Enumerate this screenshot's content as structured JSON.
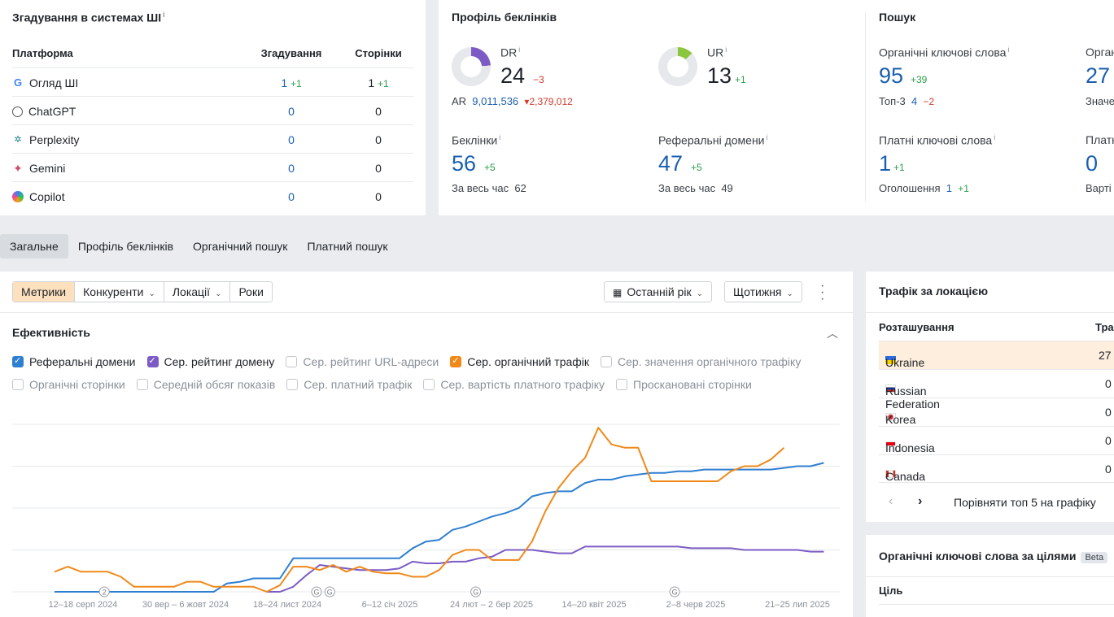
{
  "ai": {
    "title": "Згадування в системах ШІ",
    "info": "i",
    "headers": {
      "platform": "Платформа",
      "mentions": "Згадування",
      "pages": "Сторінки"
    },
    "rows": [
      {
        "name": "Огляд ШІ",
        "icon": "google-icon",
        "mentions": "1",
        "mentions_delta": "+1",
        "pages": "1",
        "pages_delta": "+1"
      },
      {
        "name": "ChatGPT",
        "icon": "chatgpt-icon",
        "mentions": "0",
        "mentions_delta": "",
        "pages": "0",
        "pages_delta": ""
      },
      {
        "name": "Perplexity",
        "icon": "perplexity-icon",
        "mentions": "0",
        "mentions_delta": "",
        "pages": "0",
        "pages_delta": ""
      },
      {
        "name": "Gemini",
        "icon": "gemini-icon",
        "mentions": "0",
        "mentions_delta": "",
        "pages": "0",
        "pages_delta": ""
      },
      {
        "name": "Copilot",
        "icon": "copilot-icon",
        "mentions": "0",
        "mentions_delta": "",
        "pages": "0",
        "pages_delta": ""
      }
    ]
  },
  "backlinks": {
    "title": "Профіль беклінків",
    "dr": {
      "label": "DR",
      "value": "24",
      "delta": "−3",
      "ratio": 0.24,
      "color": "#7c5cc4"
    },
    "ar": {
      "label": "AR",
      "value": "9,011,536",
      "delta": "2,379,012"
    },
    "ur": {
      "label": "UR",
      "value": "13",
      "delta": "+1",
      "ratio": 0.13,
      "color": "#8cc63f"
    },
    "links": {
      "label": "Беклінки",
      "value": "56",
      "delta": "+5",
      "all_label": "За весь час",
      "all_value": "62"
    },
    "refdomains": {
      "label": "Реферальні домени",
      "value": "47",
      "delta": "+5",
      "all_label": "За весь час",
      "all_value": "49"
    }
  },
  "search": {
    "title": "Пошук",
    "organic": {
      "label": "Органічні ключові слова",
      "value": "95",
      "delta": "+39",
      "top3_label": "Топ-3",
      "top3_value": "4",
      "top3_delta": "−2"
    },
    "organic2": {
      "label": "Орган",
      "value": "27",
      "sub": "Значе"
    },
    "paid": {
      "label": "Платні ключові слова",
      "value": "1",
      "delta": "+1",
      "ads_label": "Оголошення",
      "ads_value": "1",
      "ads_delta": "+1"
    },
    "paid2": {
      "label": "Платн",
      "value": "0",
      "sub": "Варті"
    }
  },
  "tabs": [
    "Загальне",
    "Профіль беклінків",
    "Органічний пошук",
    "Платний пошук"
  ],
  "perf": {
    "buttons": {
      "metrics": "Метрики",
      "competitors": "Конкуренти",
      "locations": "Локації",
      "years": "Роки",
      "period": "Останній рік",
      "interval": "Щотижня"
    },
    "title": "Ефективність",
    "checks_row1": [
      {
        "label": "Реферальні домени",
        "checked": true,
        "color": "#2f7fd1"
      },
      {
        "label": "Сер. рейтинг домену",
        "checked": true,
        "color": "#7c5cc4"
      },
      {
        "label": "Сер. рейтинг URL-адреси",
        "checked": false,
        "color": ""
      },
      {
        "label": "Сер. органічний трафік",
        "checked": true,
        "color": "#f0891a"
      },
      {
        "label": "Сер. значення органічного трафіку",
        "checked": false,
        "color": ""
      }
    ],
    "checks_row2": [
      {
        "label": "Органічні сторінки",
        "checked": false
      },
      {
        "label": "Середній обсяг показів",
        "checked": false
      },
      {
        "label": "Сер. платний трафік",
        "checked": false
      },
      {
        "label": "Сер. вартість платного трафіку",
        "checked": false
      },
      {
        "label": "Проскановані сторінки",
        "checked": false
      }
    ]
  },
  "chart_data": {
    "type": "line",
    "x_ticks": [
      "12–18 серп 2024",
      "30 вер – 6 жовт 2024",
      "18–24 лист 2024",
      "6–12 січ 2025",
      "24 лют – 2 бер 2025",
      "14–20 квіт 2025",
      "2–8 черв 2025",
      "21–25 лип 2025"
    ],
    "markers": [
      {
        "week": 4,
        "label": "2"
      },
      {
        "week": 20,
        "label": "G"
      },
      {
        "week": 21,
        "label": "G"
      },
      {
        "week": 32,
        "label": "G"
      },
      {
        "week": 47,
        "label": "G"
      }
    ],
    "ylim": [
      0,
      100
    ],
    "grid": true,
    "series": [
      {
        "name": "Реферальні домени",
        "color": "#2f7fd1",
        "values": [
          0,
          0,
          0,
          0,
          0,
          0,
          0,
          0,
          0,
          0,
          0,
          0,
          0,
          5,
          6,
          8,
          8,
          8,
          20,
          20,
          20,
          20,
          20,
          20,
          20,
          20,
          20,
          26,
          30,
          31,
          37,
          39,
          42,
          45,
          47,
          50,
          57,
          59,
          60,
          60,
          65,
          67,
          67,
          69,
          70,
          71,
          71,
          72,
          72,
          73,
          73,
          73,
          73,
          73,
          73,
          74,
          75,
          75,
          77
        ]
      },
      {
        "name": "Сер. рейтинг домену",
        "color": "#7c5cc4",
        "values": [
          null,
          null,
          null,
          null,
          null,
          null,
          null,
          null,
          null,
          null,
          null,
          null,
          null,
          null,
          null,
          null,
          0,
          0,
          3,
          10,
          16,
          15,
          14,
          13,
          13,
          13,
          14,
          18,
          17,
          17,
          18,
          18,
          20,
          21,
          25,
          25,
          25,
          24,
          23,
          23,
          27,
          27,
          27,
          27,
          27,
          27,
          27,
          27,
          26,
          26,
          26,
          26,
          25,
          25,
          25,
          25,
          25,
          24,
          24
        ]
      },
      {
        "name": "Сер. органічний трафік",
        "color": "#f0891a",
        "values": [
          12,
          15,
          12,
          12,
          12,
          9,
          3,
          3,
          3,
          3,
          6,
          6,
          3,
          3,
          3,
          3,
          0,
          4,
          15,
          15,
          13,
          16,
          12,
          15,
          12,
          11,
          11,
          9,
          9,
          13,
          22,
          25,
          25,
          19,
          19,
          19,
          30,
          48,
          62,
          72,
          80,
          98,
          88,
          86,
          86,
          66,
          66,
          66,
          66,
          66,
          66,
          72,
          75,
          75,
          79,
          86
        ]
      }
    ]
  },
  "location": {
    "title": "Трафік за локацією",
    "headers": {
      "location": "Розташування",
      "traffic": "Тра"
    },
    "rows": [
      {
        "name": "Ukraine",
        "value": "27",
        "flag": "ukraine-flag-icon"
      },
      {
        "name": "Russian Federation",
        "value": "0",
        "flag": "russia-flag-icon"
      },
      {
        "name": "Korea",
        "value": "0",
        "flag": "korea-flag-icon"
      },
      {
        "name": "Indonesia",
        "value": "0",
        "flag": "indonesia-flag-icon"
      },
      {
        "name": "Canada",
        "value": "0",
        "flag": "canada-flag-icon"
      }
    ],
    "compare": "Порівняти топ 5 на графіку"
  },
  "keywords_intent": {
    "title": "Органічні ключові слова за цілями",
    "beta": "Beta",
    "col": "Ціль"
  }
}
